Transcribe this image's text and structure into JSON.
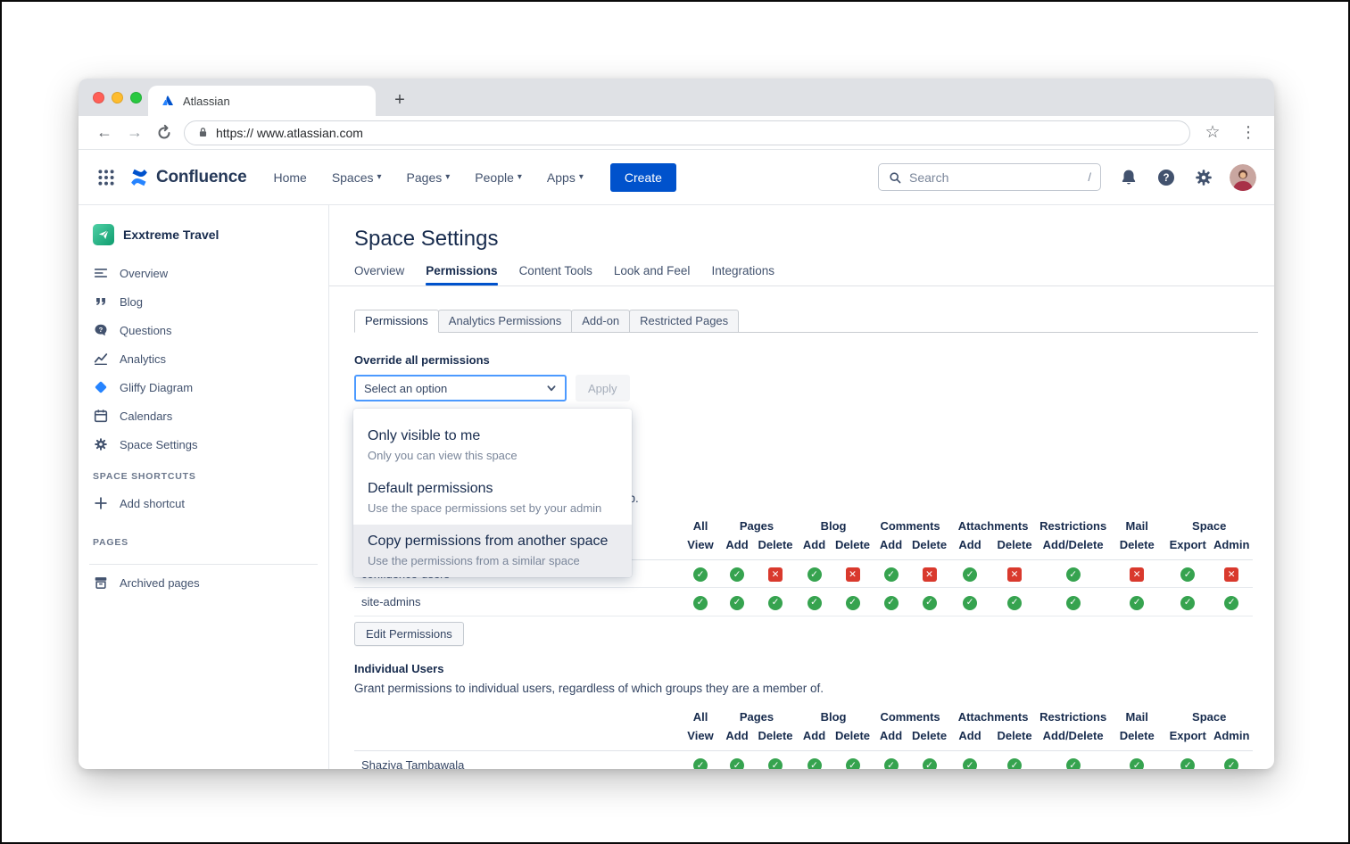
{
  "colors": {
    "accent": "#0052cc",
    "focus_border": "#4c9aff",
    "granted": "#36a34f",
    "denied": "#d9392d"
  },
  "browser": {
    "tab_title": "Atlassian",
    "new_tab_label": "+",
    "url": "https:// www.atlassian.com"
  },
  "app_header": {
    "product_name": "Confluence",
    "nav_items": [
      {
        "label": "Home",
        "caret": false
      },
      {
        "label": "Spaces",
        "caret": true
      },
      {
        "label": "Pages",
        "caret": true
      },
      {
        "label": "People",
        "caret": true
      },
      {
        "label": "Apps",
        "caret": true
      }
    ],
    "create_button": "Create",
    "search": {
      "placeholder": "Search",
      "shortcut_hint": "/"
    }
  },
  "sidebar": {
    "space_name": "Exxtreme Travel",
    "items": [
      {
        "label": "Overview",
        "icon": "overview-icon"
      },
      {
        "label": "Blog",
        "icon": "blog-icon"
      },
      {
        "label": "Questions",
        "icon": "questions-icon"
      },
      {
        "label": "Analytics",
        "icon": "analytics-icon"
      },
      {
        "label": "Gliffy Diagram",
        "icon": "gliffy-icon"
      },
      {
        "label": "Calendars",
        "icon": "calendar-icon"
      },
      {
        "label": "Space Settings",
        "icon": "settings-icon"
      }
    ],
    "space_shortcuts_label": "SPACE SHORTCUTS",
    "add_shortcut_label": "Add shortcut",
    "pages_label": "PAGES",
    "archived_pages_label": "Archived pages"
  },
  "main": {
    "page_title": "Space Settings",
    "tabs": [
      "Overview",
      "Permissions",
      "Content Tools",
      "Look and Feel",
      "Integrations"
    ],
    "active_tab": "Permissions",
    "subtabs": [
      "Permissions",
      "Analytics Permissions",
      "Add-on",
      "Restricted Pages"
    ],
    "active_subtab": "Permissions",
    "override": {
      "heading": "Override all permissions",
      "select_value": "Select an option",
      "apply_label": "Apply",
      "options": [
        {
          "title": "Only visible to me",
          "description": "Only you can view this space",
          "highlighted": false
        },
        {
          "title": "Default permissions",
          "description": "Use the space permissions set by your admin",
          "highlighted": false
        },
        {
          "title": "Copy permissions from another space",
          "description": "Use the permissions from a similar space",
          "highlighted": true
        }
      ]
    },
    "permission_columns": {
      "groups": [
        {
          "label": "All",
          "span": 1
        },
        {
          "label": "Pages",
          "span": 2
        },
        {
          "label": "Blog",
          "span": 2
        },
        {
          "label": "Comments",
          "span": 2
        },
        {
          "label": "Attachments",
          "span": 2
        },
        {
          "label": "Restrictions",
          "span": 1
        },
        {
          "label": "Mail",
          "span": 1
        },
        {
          "label": "Space",
          "span": 2
        }
      ],
      "sub": [
        "View",
        "Add",
        "Delete",
        "Add",
        "Delete",
        "Add",
        "Delete",
        "Add",
        "Delete",
        "Add/Delete",
        "Delete",
        "Export",
        "Admin"
      ]
    },
    "groups_section": {
      "visible_text_fragment": "up.",
      "rows": [
        {
          "name": "confluence-users",
          "permissions": [
            true,
            true,
            false,
            true,
            false,
            true,
            false,
            true,
            false,
            true,
            false,
            true,
            false
          ]
        },
        {
          "name": "site-admins",
          "permissions": [
            true,
            true,
            true,
            true,
            true,
            true,
            true,
            true,
            true,
            true,
            true,
            true,
            true
          ]
        }
      ],
      "edit_button": "Edit Permissions"
    },
    "individual_users_section": {
      "heading": "Individual Users",
      "description": "Grant permissions to individual users, regardless of which groups they are a member of.",
      "rows": [
        {
          "name": "Shaziya Tambawala",
          "permissions": [
            true,
            true,
            true,
            true,
            true,
            true,
            true,
            true,
            true,
            true,
            true,
            true,
            true
          ]
        }
      ]
    }
  }
}
